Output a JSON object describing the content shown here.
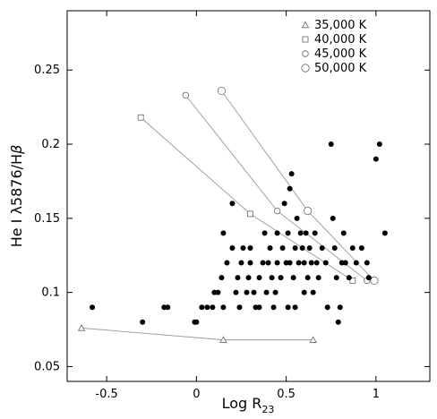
{
  "chart_data": {
    "type": "scatter",
    "title": "",
    "xlabel": "Log R",
    "xlabel_sub": "23",
    "ylabel_prefix": "He I λ5876/H",
    "ylabel_beta": "β",
    "xlim": [
      -0.72,
      1.3
    ],
    "ylim": [
      0.04,
      0.29
    ],
    "xticks": [
      -0.5,
      0,
      0.5,
      1
    ],
    "xtick_labels": [
      "-0.5",
      "0",
      "0.5",
      "1"
    ],
    "yticks": [
      0.05,
      0.1,
      0.15,
      0.2,
      0.25
    ],
    "ytick_labels": [
      "0.05",
      "0.1",
      "0.15",
      "0.2",
      "0.25"
    ],
    "legend_position": "top-right",
    "observed": [
      [
        -0.58,
        0.09
      ],
      [
        -0.3,
        0.08
      ],
      [
        -0.18,
        0.09
      ],
      [
        -0.16,
        0.09
      ],
      [
        -0.01,
        0.08
      ],
      [
        0.0,
        0.08
      ],
      [
        0.03,
        0.09
      ],
      [
        0.06,
        0.09
      ],
      [
        0.09,
        0.09
      ],
      [
        0.1,
        0.1
      ],
      [
        0.12,
        0.1
      ],
      [
        0.14,
        0.11
      ],
      [
        0.15,
        0.09
      ],
      [
        0.15,
        0.14
      ],
      [
        0.17,
        0.12
      ],
      [
        0.2,
        0.16
      ],
      [
        0.2,
        0.13
      ],
      [
        0.22,
        0.1
      ],
      [
        0.23,
        0.11
      ],
      [
        0.24,
        0.09
      ],
      [
        0.25,
        0.12
      ],
      [
        0.26,
        0.13
      ],
      [
        0.28,
        0.1
      ],
      [
        0.29,
        0.11
      ],
      [
        0.3,
        0.13
      ],
      [
        0.3,
        0.12
      ],
      [
        0.32,
        0.1
      ],
      [
        0.33,
        0.09
      ],
      [
        0.35,
        0.09
      ],
      [
        0.35,
        0.11
      ],
      [
        0.37,
        0.12
      ],
      [
        0.38,
        0.14
      ],
      [
        0.39,
        0.1
      ],
      [
        0.4,
        0.12
      ],
      [
        0.41,
        0.13
      ],
      [
        0.42,
        0.11
      ],
      [
        0.43,
        0.09
      ],
      [
        0.44,
        0.1
      ],
      [
        0.45,
        0.12
      ],
      [
        0.45,
        0.14
      ],
      [
        0.47,
        0.11
      ],
      [
        0.48,
        0.13
      ],
      [
        0.49,
        0.16
      ],
      [
        0.5,
        0.12
      ],
      [
        0.51,
        0.09
      ],
      [
        0.51,
        0.14
      ],
      [
        0.52,
        0.12
      ],
      [
        0.52,
        0.17
      ],
      [
        0.53,
        0.18
      ],
      [
        0.54,
        0.11
      ],
      [
        0.55,
        0.13
      ],
      [
        0.55,
        0.09
      ],
      [
        0.56,
        0.15
      ],
      [
        0.57,
        0.12
      ],
      [
        0.58,
        0.14
      ],
      [
        0.59,
        0.13
      ],
      [
        0.6,
        0.12
      ],
      [
        0.6,
        0.1
      ],
      [
        0.61,
        0.14
      ],
      [
        0.62,
        0.11
      ],
      [
        0.63,
        0.13
      ],
      [
        0.64,
        0.12
      ],
      [
        0.65,
        0.1
      ],
      [
        0.66,
        0.14
      ],
      [
        0.67,
        0.12
      ],
      [
        0.68,
        0.11
      ],
      [
        0.7,
        0.13
      ],
      [
        0.72,
        0.12
      ],
      [
        0.73,
        0.09
      ],
      [
        0.75,
        0.2
      ],
      [
        0.76,
        0.15
      ],
      [
        0.77,
        0.13
      ],
      [
        0.78,
        0.11
      ],
      [
        0.79,
        0.08
      ],
      [
        0.8,
        0.09
      ],
      [
        0.81,
        0.12
      ],
      [
        0.82,
        0.14
      ],
      [
        0.83,
        0.12
      ],
      [
        0.85,
        0.11
      ],
      [
        0.87,
        0.13
      ],
      [
        0.89,
        0.12
      ],
      [
        0.92,
        0.13
      ],
      [
        0.95,
        0.12
      ],
      [
        0.96,
        0.11
      ],
      [
        1.0,
        0.19
      ],
      [
        1.02,
        0.2
      ],
      [
        1.05,
        0.14
      ]
    ],
    "models": [
      {
        "name": "35,000 K",
        "marker": "triangle",
        "x": [
          -0.64,
          0.15,
          0.65
        ],
        "y": [
          0.076,
          0.068,
          0.068
        ]
      },
      {
        "name": "40,000 K",
        "marker": "square",
        "x": [
          -0.31,
          0.3,
          0.87
        ],
        "y": [
          0.218,
          0.153,
          0.108
        ]
      },
      {
        "name": "45,000 K",
        "marker": "circle-small",
        "x": [
          -0.06,
          0.45,
          0.95
        ],
        "y": [
          0.233,
          0.155,
          0.108
        ]
      },
      {
        "name": "50,000 K",
        "marker": "circle-large",
        "x": [
          0.14,
          0.62,
          0.99
        ],
        "y": [
          0.236,
          0.155,
          0.108
        ]
      }
    ]
  }
}
